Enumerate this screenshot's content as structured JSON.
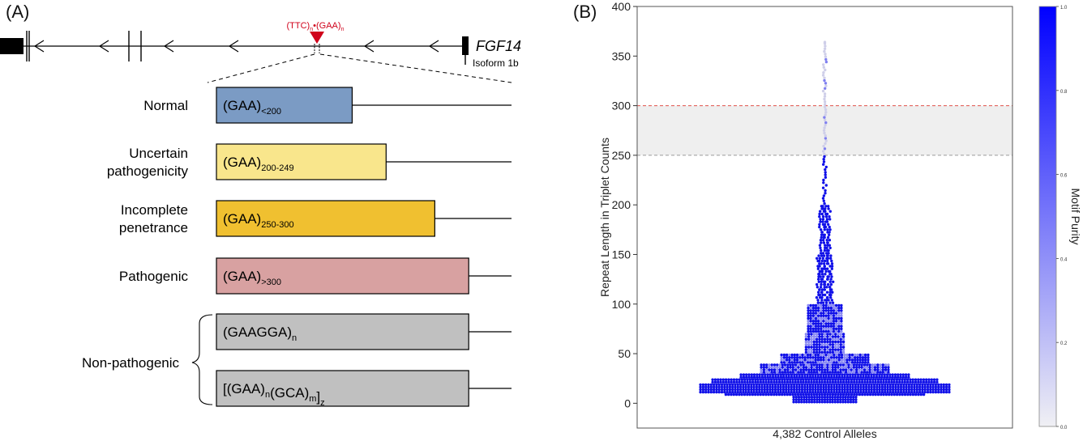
{
  "panel_a": {
    "label": "(A)",
    "gene_name": "FGF14",
    "isoform": "Isoform 1b",
    "repeat_label": {
      "ttc": "(TTC)",
      "n1": "n",
      "dot": "•",
      "gaa": "(GAA)",
      "n2": "n"
    },
    "rows": [
      {
        "category": [
          "Normal"
        ],
        "motif": "(GAA)",
        "sub": "<200",
        "color": "#7b9bc4",
        "length_fraction": 0.46
      },
      {
        "category": [
          "Uncertain",
          "pathogenicity"
        ],
        "motif": "(GAA)",
        "sub": "200-249",
        "color": "#f9e68c",
        "length_fraction": 0.575
      },
      {
        "category": [
          "Incomplete",
          "penetrance"
        ],
        "motif": "(GAA)",
        "sub": "250-300",
        "color": "#f0c030",
        "length_fraction": 0.74
      },
      {
        "category": [
          "Pathogenic"
        ],
        "motif": "(GAA)",
        "sub": ">300",
        "color": "#d8a1a1",
        "length_fraction": 0.855
      },
      {
        "category": [],
        "motif": "(GAAGGA)",
        "sub": "n",
        "color": "#c0c0c0",
        "length_fraction": 0.855
      },
      {
        "category": [],
        "motif": "[(GAA)",
        "sub": "n",
        "motif2": "(GCA)",
        "sub2": "m",
        "motif3": "]",
        "sub3": "z",
        "color": "#c0c0c0",
        "length_fraction": 0.855
      }
    ],
    "nonpathogenic_label": "Non-pathogenic",
    "colors": {
      "gene_line": "#000000",
      "repeat_marker": "#d0021b"
    }
  },
  "panel_b": {
    "label": "(B)",
    "chart_data": {
      "type": "scatter",
      "subtype": "swarm",
      "xlabel": "4,382 Control Alleles",
      "ylabel": "Repeat Length in Triplet Counts",
      "ylim": [
        -25,
        400
      ],
      "yticks": [
        0,
        50,
        100,
        150,
        200,
        250,
        300,
        350,
        400
      ],
      "threshold_lines": [
        {
          "y": 300,
          "color": "#e0524a",
          "style": "dashed"
        },
        {
          "y": 250,
          "color": "#9a9a9a",
          "style": "dashed"
        }
      ],
      "shaded_band": {
        "from": 250,
        "to": 300,
        "color": "#efefef"
      },
      "point_color_high_purity": "#1010e8",
      "point_color_low_purity": "#cfcfe9",
      "total_alleles": 4382,
      "distribution_summary": {
        "mode_range": [
          9,
          20
        ],
        "max_value": 364,
        "bins": [
          {
            "range": [
              0,
              10
            ],
            "approx_count": 300
          },
          {
            "range": [
              10,
              20
            ],
            "approx_count": 1900
          },
          {
            "range": [
              20,
              30
            ],
            "approx_count": 900
          },
          {
            "range": [
              30,
              40
            ],
            "approx_count": 450
          },
          {
            "range": [
              40,
              50
            ],
            "approx_count": 260
          },
          {
            "range": [
              50,
              100
            ],
            "approx_count": 280
          },
          {
            "range": [
              100,
              150
            ],
            "approx_count": 120
          },
          {
            "range": [
              150,
              200
            ],
            "approx_count": 80
          },
          {
            "range": [
              200,
              250
            ],
            "approx_count": 25
          },
          {
            "range": [
              250,
              300
            ],
            "approx_count": 14
          },
          {
            "range": [
              300,
              364
            ],
            "approx_count": 28
          }
        ]
      },
      "colorbar": {
        "label": "Motif Purity",
        "range": [
          0.0,
          1.0
        ],
        "ticks": [
          "0.0",
          "0.2",
          "0.4",
          "0.6",
          "0.8",
          "1.0"
        ],
        "color_low": "#f0f0f4",
        "color_high": "#0000ff"
      }
    }
  }
}
